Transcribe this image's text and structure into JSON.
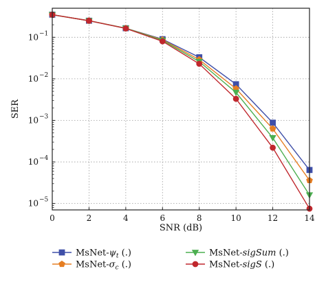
{
  "chart_data": {
    "type": "line",
    "xlabel": "SNR (dB)",
    "ylabel": "SER",
    "x": [
      0,
      2,
      4,
      6,
      8,
      10,
      12,
      14
    ],
    "xlim": [
      0,
      14
    ],
    "ylim": [
      7e-06,
      0.5
    ],
    "yscale": "log",
    "grid": true,
    "legend_position": "bottom",
    "x_ticks": [
      "0",
      "2",
      "4",
      "6",
      "8",
      "10",
      "12",
      "14"
    ],
    "y_ticks": [
      {
        "value": 0.1,
        "base": "10",
        "exp": "−1"
      },
      {
        "value": 0.01,
        "base": "10",
        "exp": "−2"
      },
      {
        "value": 0.001,
        "base": "10",
        "exp": "−3"
      },
      {
        "value": 0.0001,
        "base": "10",
        "exp": "−4"
      },
      {
        "value": 1e-05,
        "base": "10",
        "exp": "−5"
      }
    ],
    "series": [
      {
        "name": "MsNet-ψt (.)",
        "prefix": "MsNet-",
        "sym": "ψ",
        "sub": "t",
        "suffix": " (.)",
        "italic": false,
        "color": "#3f4fa8",
        "marker": "square",
        "values": [
          0.35,
          0.25,
          0.165,
          0.09,
          0.033,
          0.0074,
          0.00088,
          6.4e-05
        ]
      },
      {
        "name": "MsNet-σc (.)",
        "prefix": "MsNet-",
        "sym": "σ",
        "sub": "c",
        "suffix": " (.)",
        "italic": false,
        "color": "#e67e22",
        "marker": "pentagon",
        "values": [
          0.35,
          0.25,
          0.165,
          0.087,
          0.029,
          0.0058,
          0.00063,
          3.6e-05
        ]
      },
      {
        "name": "MsNet-sigSum (.)",
        "prefix": "MsNet-",
        "sym": "sigSum",
        "sub": "",
        "suffix": " (.)",
        "italic": true,
        "color": "#4caf50",
        "marker": "triangle-down",
        "values": [
          0.35,
          0.25,
          0.165,
          0.084,
          0.026,
          0.0047,
          0.00038,
          1.6e-05
        ]
      },
      {
        "name": "MsNet-sigS (.)",
        "prefix": "MsNet-",
        "sym": "sigS",
        "sub": "",
        "suffix": " (.)",
        "italic": true,
        "color": "#c0272d",
        "marker": "circle",
        "values": [
          0.35,
          0.25,
          0.163,
          0.08,
          0.023,
          0.0033,
          0.00022,
          7.5e-06
        ]
      }
    ]
  }
}
